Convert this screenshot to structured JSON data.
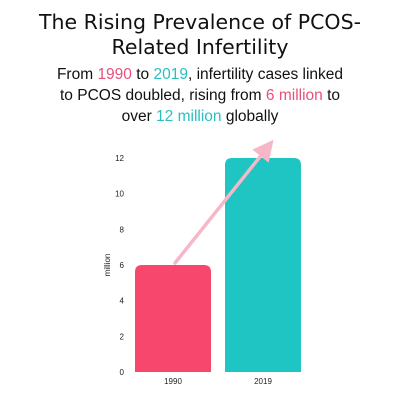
{
  "title": {
    "line1": "The Rising Prevalence of PCOS-",
    "line2": "Related Infertility"
  },
  "subtitle": {
    "l1_a": "From ",
    "l1_y1": "1990",
    "l1_b": " to ",
    "l1_y2": "2019",
    "l1_c": ", infertility cases linked",
    "l2_a": "to PCOS doubled, rising from ",
    "l2_v1": "6 million",
    "l2_b": " to",
    "l3_a": "over ",
    "l3_v2": "12 million",
    "l3_b": " globally"
  },
  "colors": {
    "pink": "#f7476d",
    "teal": "#1fc5c3",
    "arrow": "#f6b8c8",
    "highlight_pink": "#e8507a",
    "highlight_teal": "#27bfc0"
  },
  "chart_data": {
    "type": "bar",
    "categories": [
      "1990",
      "2019"
    ],
    "values": [
      6,
      12
    ],
    "ylabel": "million",
    "xlabel": "",
    "ylim": [
      0,
      12
    ],
    "yticks": [
      "0",
      "2",
      "4",
      "6",
      "8",
      "10",
      "12"
    ],
    "grid": false,
    "annotation": "upward arrow from 1990 bar to 2019 bar"
  }
}
